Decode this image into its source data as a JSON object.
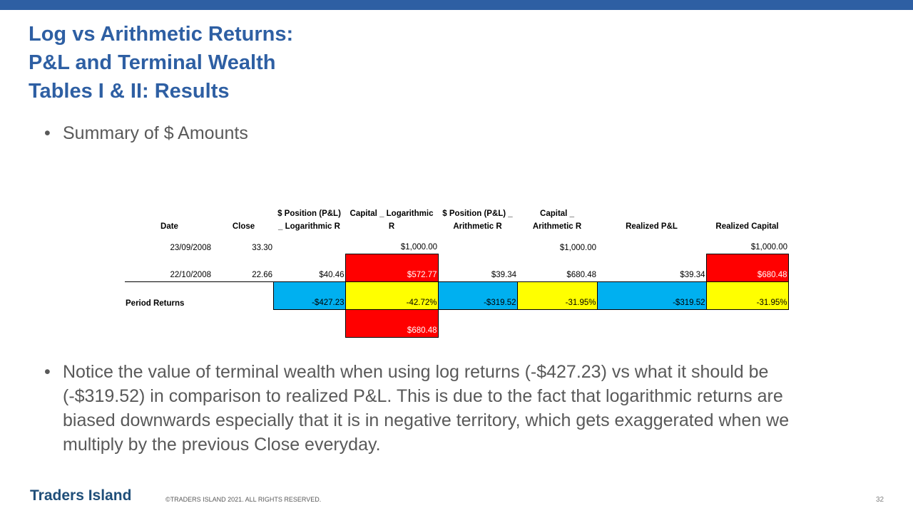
{
  "header": {
    "title_lines": [
      "Log vs Arithmetic Returns:",
      "P&L and Terminal Wealth",
      "Tables I & II: Results"
    ]
  },
  "bullets": [
    "Summary of $ Amounts",
    "Notice the value of terminal wealth when using log returns (-$427.23) vs what it should be (-$319.52) in comparison to realized P&L. This is due to the fact that logarithmic returns are biased downwards especially that it is in negative territory, which gets exaggerated when we multiply by the previous Close everyday."
  ],
  "table": {
    "headers": [
      [
        "Date"
      ],
      [
        "Close"
      ],
      [
        "$ Position (P&L)",
        "_ Logarithmic R"
      ],
      [
        "Capital _ Logarithmic",
        "R"
      ],
      [
        "$ Position (P&L) _",
        "Arithmetic R"
      ],
      [
        "Capital _",
        "Arithmetic R"
      ],
      [
        "Realized P&L"
      ],
      [
        "Realized Capital"
      ]
    ],
    "rows": [
      [
        "23/09/2008",
        "33.30",
        null,
        "$1,000.00",
        null,
        "$1,000.00",
        null,
        "$1,000.00"
      ],
      [
        "22/10/2008",
        "22.66",
        "$40.46",
        "$572.77",
        "$39.34",
        "$680.48",
        "$39.34",
        "$680.48"
      ],
      [
        "Period Returns",
        null,
        "-$427.23",
        "-42.72%",
        "-$319.52",
        "-31.95%",
        "-$319.52",
        "-31.95%"
      ],
      [
        null,
        null,
        null,
        "$680.48",
        null,
        null,
        null,
        null
      ]
    ]
  },
  "footer": {
    "logo": "Traders Island",
    "copyright": "©TRADERS ISLAND 2021. ALL RIGHTS RESERVED.",
    "page": "32"
  }
}
